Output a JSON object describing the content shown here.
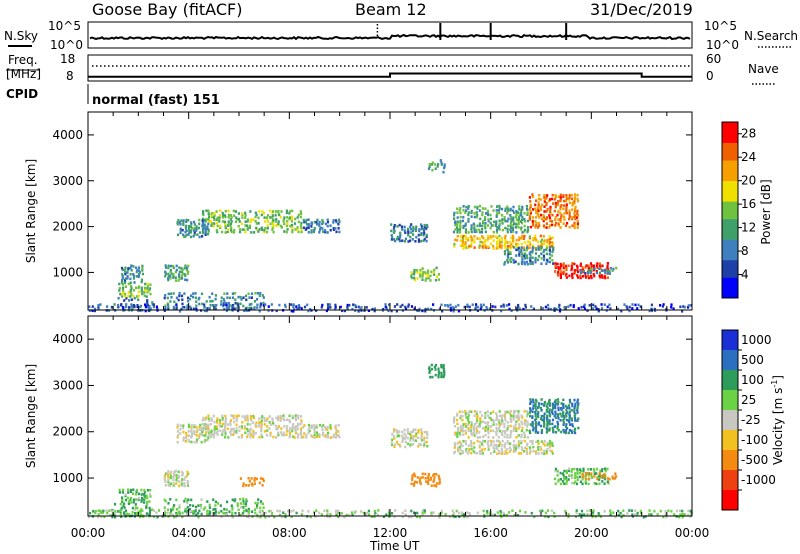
{
  "header": {
    "station": "Goose Bay (fitACF)",
    "beam": "Beam 12",
    "date": "31/Dec/2019"
  },
  "sky_panel": {
    "left_label": "N.Sky",
    "left_ticks": [
      "10^5",
      "10^0"
    ],
    "right_label": "N.Search",
    "right_ticks": [
      "10^5",
      "10^0"
    ]
  },
  "freq_panel": {
    "left_label_line1": "Freq.",
    "left_label_line2": "[MHz]",
    "left_ticks": [
      "18",
      "8"
    ],
    "right_label": "Nave",
    "right_ticks": [
      "60",
      "0"
    ],
    "frequency_steps": [
      {
        "start_h": 0,
        "end_h": 12,
        "mhz": 9.0
      },
      {
        "start_h": 12,
        "end_h": 22,
        "mhz": 10.5
      },
      {
        "start_h": 22,
        "end_h": 24,
        "mhz": 9.0
      }
    ]
  },
  "cpid": {
    "label": "CPID",
    "value": "normal (fast) 151"
  },
  "time_axis": {
    "title": "Time UT",
    "ticks": [
      "00:00",
      "04:00",
      "08:00",
      "12:00",
      "16:00",
      "20:00",
      "00:00"
    ]
  },
  "chart_data": [
    {
      "type": "heatmap",
      "title": "Power",
      "x_label": "Time UT",
      "y_label": "Slant Range [km]",
      "x_range_hours": [
        0,
        24
      ],
      "y_range_km": [
        180,
        4500
      ],
      "y_ticks": [
        1000,
        2000,
        3000,
        4000
      ],
      "colorbar": {
        "label": "Power [dB]",
        "ticks": [
          4,
          8,
          12,
          16,
          20,
          24,
          28
        ],
        "range": [
          0,
          30
        ],
        "colors": [
          "#0000ff",
          "#1e3ea8",
          "#3f7fbf",
          "#3fa06a",
          "#6fc23f",
          "#f0e000",
          "#f5a000",
          "#f06000",
          "#ff0000"
        ]
      },
      "echo_regions": [
        {
          "t0": 0.9,
          "t1": 2.6,
          "r0": 200,
          "r1": 500,
          "power": 8
        },
        {
          "t0": 1.2,
          "t1": 2.5,
          "r0": 500,
          "r1": 800,
          "power": 14
        },
        {
          "t0": 1.3,
          "t1": 2.2,
          "r0": 800,
          "r1": 1200,
          "power": 10
        },
        {
          "t0": 3.0,
          "t1": 4.0,
          "r0": 850,
          "r1": 1200,
          "power": 12
        },
        {
          "t0": 3.0,
          "t1": 7.0,
          "r0": 250,
          "r1": 600,
          "power": 10
        },
        {
          "t0": 4.5,
          "t1": 8.5,
          "r0": 1900,
          "r1": 2400,
          "power": 14
        },
        {
          "t0": 3.5,
          "t1": 4.8,
          "r0": 1800,
          "r1": 2200,
          "power": 10
        },
        {
          "t0": 8.5,
          "t1": 10.0,
          "r0": 1900,
          "r1": 2200,
          "power": 8
        },
        {
          "t0": 12.0,
          "t1": 13.5,
          "r0": 1700,
          "r1": 2100,
          "power": 8
        },
        {
          "t0": 12.8,
          "t1": 14.0,
          "r0": 850,
          "r1": 1150,
          "power": 16
        },
        {
          "t0": 13.5,
          "t1": 14.2,
          "r0": 3200,
          "r1": 3500,
          "power": 12
        },
        {
          "t0": 14.5,
          "t1": 18.5,
          "r0": 1550,
          "r1": 1850,
          "power": 20
        },
        {
          "t0": 14.5,
          "t1": 17.5,
          "r0": 1900,
          "r1": 2500,
          "power": 12
        },
        {
          "t0": 17.5,
          "t1": 19.5,
          "r0": 2000,
          "r1": 2750,
          "power": 24
        },
        {
          "t0": 16.5,
          "t1": 18.5,
          "r0": 1200,
          "r1": 1600,
          "power": 10
        },
        {
          "t0": 18.5,
          "t1": 20.7,
          "r0": 900,
          "r1": 1250,
          "power": 28
        },
        {
          "t0": 19.5,
          "t1": 21.0,
          "r0": 1000,
          "r1": 1150,
          "power": 10
        },
        {
          "t0": 0.0,
          "t1": 24.0,
          "r0": 180,
          "r1": 350,
          "power": 6
        }
      ]
    },
    {
      "type": "heatmap",
      "title": "Velocity",
      "x_label": "Time UT",
      "y_label": "Slant Range [km]",
      "x_range_hours": [
        0,
        24
      ],
      "y_range_km": [
        180,
        4500
      ],
      "y_ticks": [
        1000,
        2000,
        3000,
        4000
      ],
      "colorbar": {
        "label": "Velocity [m s^-1]",
        "ticks": [
          1000,
          500,
          100,
          25,
          -25,
          -100,
          -500,
          -1000
        ],
        "bins": [
          {
            "label": "1000",
            "color": "#1b2fd6"
          },
          {
            "label": "500",
            "color": "#2a6fc0"
          },
          {
            "label": "100",
            "color": "#2e9c5a"
          },
          {
            "label": "25",
            "color": "#6cd245"
          },
          {
            "label": "-25",
            "color": "#c8c8c0"
          },
          {
            "label": "-100",
            "color": "#f2c020"
          },
          {
            "label": "-500",
            "color": "#f58a10"
          },
          {
            "label": "-1000",
            "color": "#ee4010"
          }
        ],
        "extra_bottom_color": "#ff0000"
      },
      "echo_regions": [
        {
          "t0": 0.9,
          "t1": 2.6,
          "r0": 200,
          "r1": 500,
          "velocity": 60
        },
        {
          "t0": 1.2,
          "t1": 2.5,
          "r0": 500,
          "r1": 800,
          "velocity": 60
        },
        {
          "t0": 3.0,
          "t1": 4.0,
          "r0": 850,
          "r1": 1200,
          "velocity": 10
        },
        {
          "t0": 3.0,
          "t1": 7.0,
          "r0": 250,
          "r1": 600,
          "velocity": 60
        },
        {
          "t0": 4.5,
          "t1": 8.5,
          "r0": 1900,
          "r1": 2400,
          "velocity": 0
        },
        {
          "t0": 3.5,
          "t1": 4.8,
          "r0": 1800,
          "r1": 2200,
          "velocity": 0
        },
        {
          "t0": 8.5,
          "t1": 10.0,
          "r0": 1900,
          "r1": 2200,
          "velocity": 0
        },
        {
          "t0": 6.0,
          "t1": 7.0,
          "r0": 850,
          "r1": 1050,
          "velocity": -200
        },
        {
          "t0": 12.0,
          "t1": 13.5,
          "r0": 1700,
          "r1": 2100,
          "velocity": 0
        },
        {
          "t0": 12.8,
          "t1": 14.0,
          "r0": 850,
          "r1": 1150,
          "velocity": -200
        },
        {
          "t0": 13.5,
          "t1": 14.2,
          "r0": 3200,
          "r1": 3500,
          "velocity": 200
        },
        {
          "t0": 14.5,
          "t1": 18.5,
          "r0": 1550,
          "r1": 1850,
          "velocity": 0
        },
        {
          "t0": 14.5,
          "t1": 17.5,
          "r0": 1900,
          "r1": 2500,
          "velocity": 0
        },
        {
          "t0": 17.5,
          "t1": 19.5,
          "r0": 2000,
          "r1": 2750,
          "velocity": 300
        },
        {
          "t0": 18.5,
          "t1": 20.7,
          "r0": 900,
          "r1": 1250,
          "velocity": 60
        },
        {
          "t0": 19.5,
          "t1": 21.0,
          "r0": 1000,
          "r1": 1150,
          "velocity": -200
        },
        {
          "t0": 0.0,
          "t1": 24.0,
          "r0": 180,
          "r1": 350,
          "velocity": 40
        }
      ]
    }
  ]
}
